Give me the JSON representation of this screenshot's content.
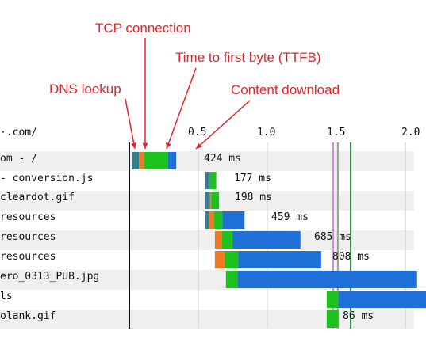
{
  "annotations": {
    "tcp": "TCP connection",
    "ttfb": "Time to first byte (TTFB)",
    "dns": "DNS lookup",
    "download": "Content download"
  },
  "header": {
    "url": "·.com/"
  },
  "axis": {
    "ticks": [
      "0.5",
      "1.0",
      "1.5",
      "2.0"
    ]
  },
  "colors": {
    "dns": "#2f7f8e",
    "tcp": "#ee7a22",
    "ttfb": "#1ec21e",
    "download": "#1f6fd8",
    "annotation": "#e0262a",
    "row_stripe": "#efefef",
    "marker_purple": "#d58ad6",
    "marker_green": "#2a9d3a",
    "marker_gray": "#9aaa9a"
  },
  "rows": [
    {
      "label": "om - /",
      "time": "424 ms",
      "dns": 0.05,
      "tcp": 0.035,
      "ttfb": 0.175,
      "download": 0.06,
      "start": 0.02
    },
    {
      "label": " - conversion.js",
      "time": "177 ms",
      "dns": 0.035,
      "tcp": 0.0,
      "ttfb": 0.045,
      "download": 0.0,
      "start": 0.55
    },
    {
      "label": "cleardot.gif",
      "time": "198 ms",
      "dns": 0.035,
      "tcp": 0.01,
      "ttfb": 0.055,
      "download": 0.0,
      "start": 0.55
    },
    {
      "label": "resources",
      "time": "459 ms",
      "dns": 0.03,
      "tcp": 0.035,
      "ttfb": 0.06,
      "download": 0.16,
      "start": 0.55
    },
    {
      "label": "resources",
      "time": "685 ms",
      "dns": 0.0,
      "tcp": 0.05,
      "ttfb": 0.08,
      "download": 0.49,
      "start": 0.62
    },
    {
      "label": "resources",
      "time": "808 ms",
      "dns": 0.0,
      "tcp": 0.07,
      "ttfb": 0.1,
      "download": 0.6,
      "start": 0.62
    },
    {
      "label": "ero_0313_PUB.jpg",
      "time": "",
      "dns": 0.0,
      "tcp": 0.0,
      "ttfb": 0.085,
      "download": 1.3,
      "start": 0.7
    },
    {
      "label": "ls",
      "time": "",
      "dns": 0.0,
      "tcp": 0.0,
      "ttfb": 0.085,
      "download": 0.75,
      "start": 1.43
    },
    {
      "label": "olank.gif",
      "time": "86 ms",
      "dns": 0.0,
      "tcp": 0.0,
      "ttfb": 0.085,
      "download": 0.0,
      "start": 1.43
    }
  ]
}
